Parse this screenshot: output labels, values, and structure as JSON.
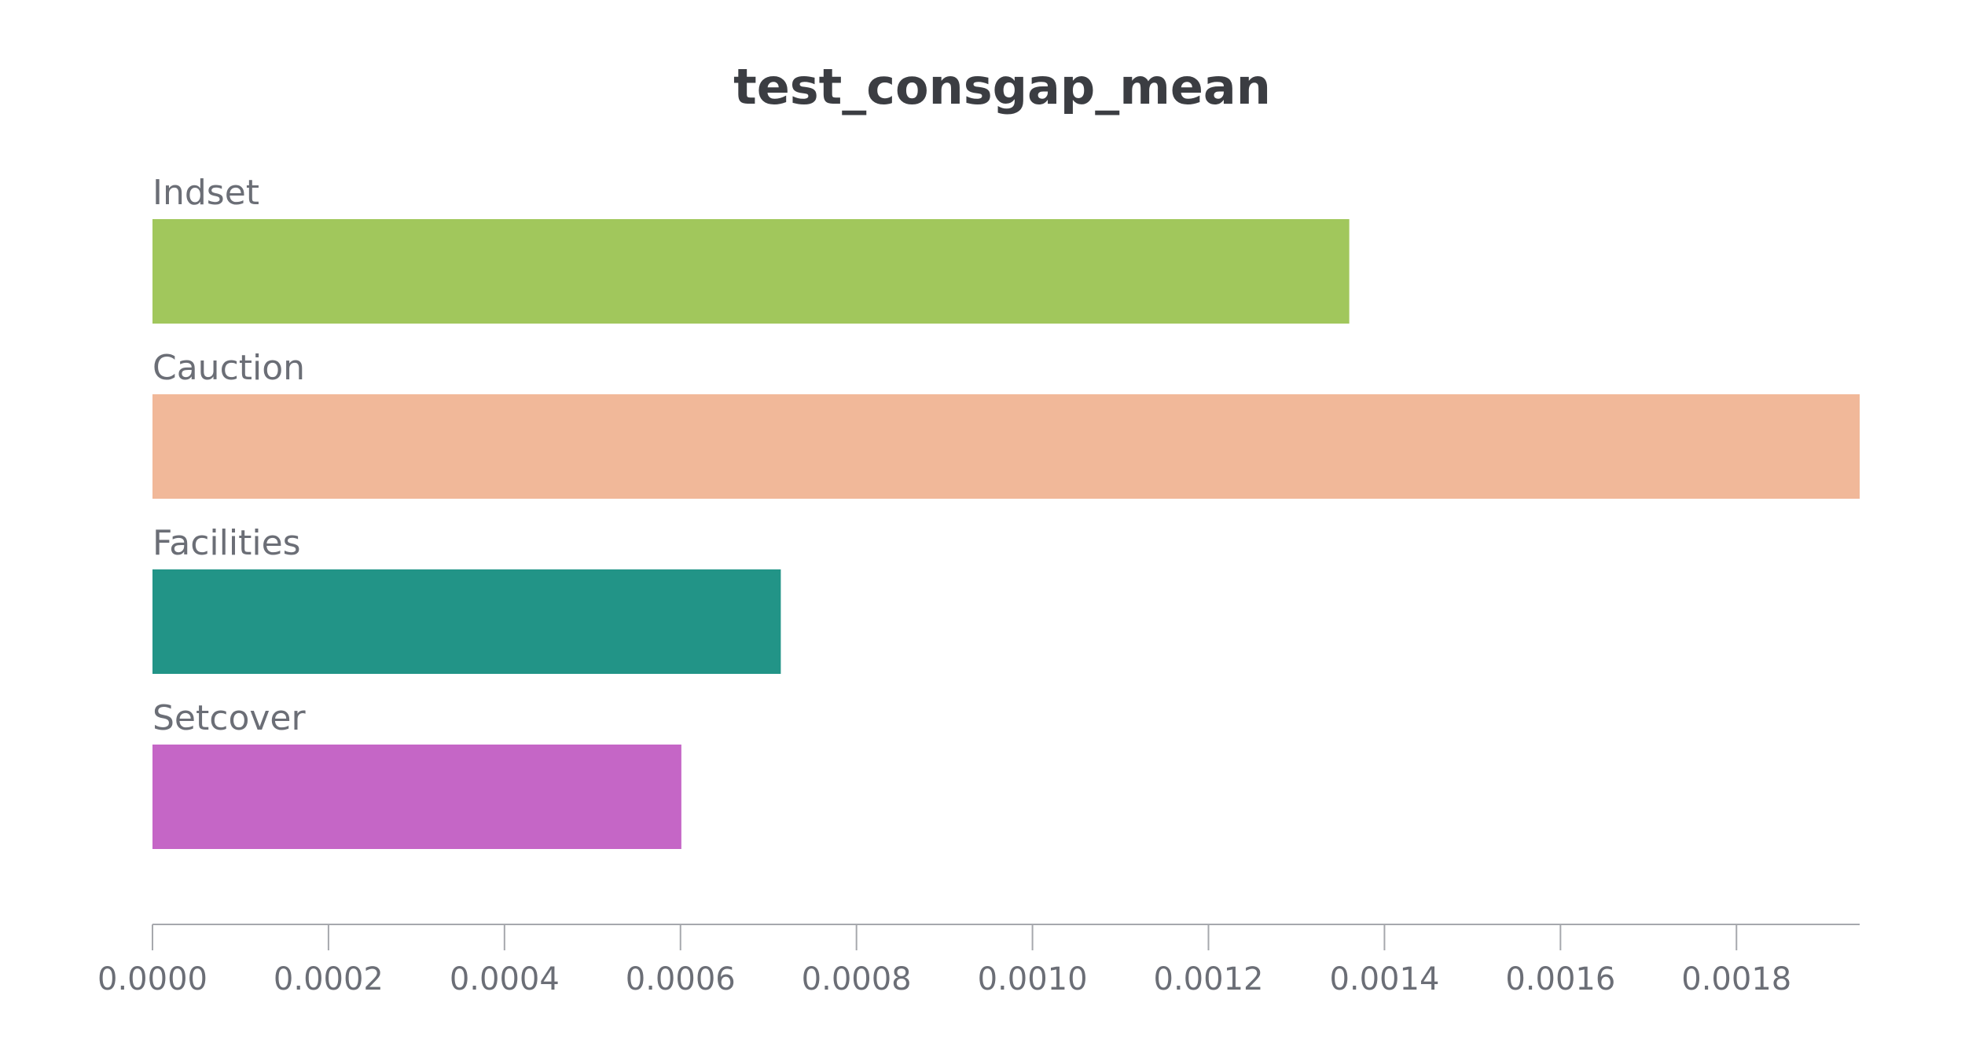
{
  "chart_data": {
    "type": "bar",
    "orientation": "horizontal",
    "title": "test_consgap_mean",
    "xlabel": "",
    "ylabel": "",
    "categories": [
      "Indset",
      "Cauction",
      "Facilities",
      "Setcover"
    ],
    "values": [
      0.00136,
      0.00194,
      0.000714,
      0.000601
    ],
    "colors": [
      "#a1c75c",
      "#f1b899",
      "#229487",
      "#c566c6"
    ],
    "xlim": [
      0,
      0.00194
    ],
    "xticks": [
      0.0,
      0.0002,
      0.0004,
      0.0006,
      0.0008,
      0.001,
      0.0012,
      0.0014,
      0.0016,
      0.0018
    ],
    "xtick_labels": [
      "0.0000",
      "0.0002",
      "0.0004",
      "0.0006",
      "0.0008",
      "0.0010",
      "0.0012",
      "0.0014",
      "0.0016",
      "0.0018"
    ],
    "grid": false,
    "legend": "none"
  }
}
